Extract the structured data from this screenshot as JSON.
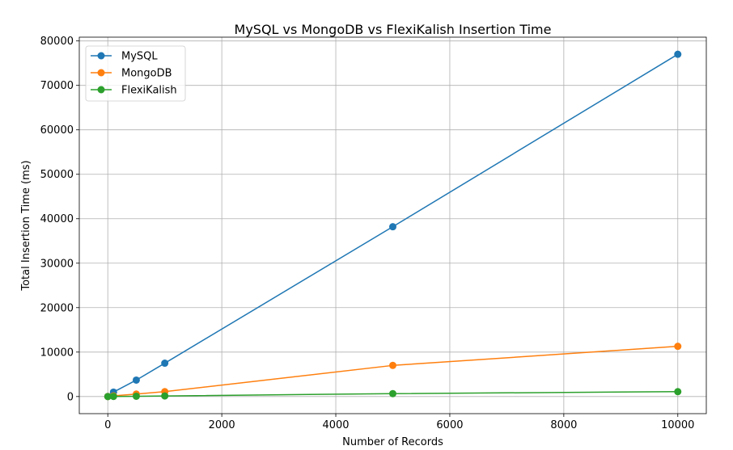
{
  "chart_data": {
    "type": "line",
    "title": "MySQL vs MongoDB vs FlexiKalish Insertion Time",
    "xlabel": "Number of Records",
    "ylabel": "Total Insertion Time (ms)",
    "x": [
      1,
      100,
      500,
      1000,
      5000,
      10000
    ],
    "xlim": [
      -500,
      10500
    ],
    "ylim": [
      -3850,
      80850
    ],
    "xticks": [
      0,
      2000,
      4000,
      6000,
      8000,
      10000
    ],
    "yticks": [
      0,
      10000,
      20000,
      30000,
      40000,
      50000,
      60000,
      70000,
      80000
    ],
    "grid": true,
    "legend_position": "top-left",
    "series": [
      {
        "name": "MySQL",
        "color": "#1f77b4",
        "values": [
          10,
          1000,
          3700,
          7500,
          38200,
          77000
        ]
      },
      {
        "name": "MongoDB",
        "color": "#ff7f0e",
        "values": [
          2,
          140,
          550,
          1100,
          7000,
          11300
        ]
      },
      {
        "name": "FlexiKalish",
        "color": "#2ca02c",
        "values": [
          1,
          15,
          60,
          130,
          650,
          1100
        ]
      }
    ]
  }
}
